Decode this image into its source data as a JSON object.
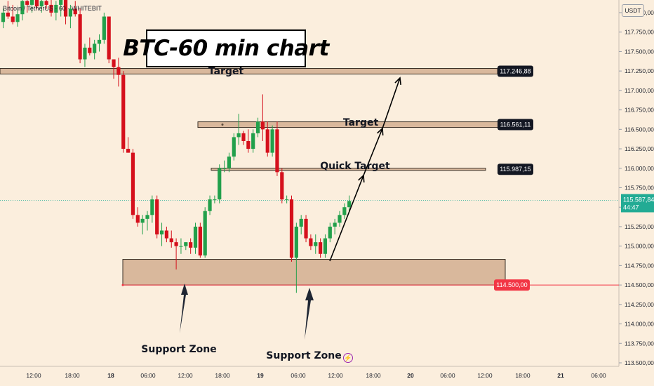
{
  "header": {
    "symbol": "Bitcoin / TetherUS · 60 · WHITEBIT",
    "currency": "USDT"
  },
  "title": "BTC-60 min chart",
  "colors": {
    "background": "#fbeedd",
    "up": "#22a04b",
    "down": "#d5101c",
    "zone_fill": "#d9b89c",
    "label_bg": "#131722",
    "support_tag": "#f23645",
    "current_tag": "#22ab94"
  },
  "chart_data": {
    "type": "candlestick",
    "title": "BTC-60 min chart",
    "y_range": [
      113400,
      118200
    ],
    "y_ticks": [
      113500,
      113750,
      114000,
      114250,
      114500,
      114750,
      115000,
      115250,
      115500,
      115750,
      116000,
      116250,
      116500,
      116750,
      117000,
      117250,
      117500,
      117750,
      118000
    ],
    "y_tick_labels": [
      "113.500,00",
      "113.750,00",
      "114.000,00",
      "114.250,00",
      "114.500,00",
      "114.750,00",
      "115.000,00",
      "115.250,00",
      "115.500,00",
      "115.750,00",
      "116.000,00",
      "116.250,00",
      "116.500,00",
      "116.750,00",
      "117.000,00",
      "117.250,00",
      "117.500,00",
      "117.750,00",
      "118.000,00"
    ],
    "x_labels": [
      "12:00",
      "18:00",
      "18",
      "06:00",
      "12:00",
      "18:00",
      "19",
      "06:00",
      "12:00",
      "18:00",
      "20",
      "06:00",
      "12:00",
      "18:00",
      "21",
      "06:00"
    ],
    "x_label_bold": [
      false,
      false,
      true,
      false,
      false,
      false,
      true,
      false,
      false,
      false,
      true,
      false,
      false,
      false,
      true,
      false
    ],
    "candles": [
      {
        "o": 117880,
        "h": 118050,
        "l": 117800,
        "c": 118000
      },
      {
        "o": 118000,
        "h": 118150,
        "l": 117920,
        "c": 117950
      },
      {
        "o": 117950,
        "h": 118100,
        "l": 117850,
        "c": 117880
      },
      {
        "o": 117880,
        "h": 118050,
        "l": 117820,
        "c": 117980
      },
      {
        "o": 117980,
        "h": 118200,
        "l": 117900,
        "c": 118150
      },
      {
        "o": 118150,
        "h": 118250,
        "l": 118000,
        "c": 118100
      },
      {
        "o": 118100,
        "h": 118220,
        "l": 118000,
        "c": 118180
      },
      {
        "o": 118180,
        "h": 118250,
        "l": 118050,
        "c": 118080
      },
      {
        "o": 118080,
        "h": 118200,
        "l": 118000,
        "c": 118150
      },
      {
        "o": 118150,
        "h": 118250,
        "l": 118050,
        "c": 118100
      },
      {
        "o": 118100,
        "h": 118200,
        "l": 117950,
        "c": 118000
      },
      {
        "o": 118000,
        "h": 118150,
        "l": 117900,
        "c": 118100
      },
      {
        "o": 118100,
        "h": 118250,
        "l": 117950,
        "c": 118180
      },
      {
        "o": 118180,
        "h": 118250,
        "l": 117850,
        "c": 117950
      },
      {
        "o": 117950,
        "h": 118100,
        "l": 117800,
        "c": 118050
      },
      {
        "o": 118050,
        "h": 118150,
        "l": 117950,
        "c": 117980
      },
      {
        "o": 117980,
        "h": 118050,
        "l": 117350,
        "c": 117400
      },
      {
        "o": 117400,
        "h": 117600,
        "l": 117300,
        "c": 117550
      },
      {
        "o": 117550,
        "h": 117680,
        "l": 117450,
        "c": 117480
      },
      {
        "o": 117480,
        "h": 117650,
        "l": 117400,
        "c": 117600
      },
      {
        "o": 117600,
        "h": 117720,
        "l": 117500,
        "c": 117650
      },
      {
        "o": 117650,
        "h": 118000,
        "l": 117600,
        "c": 117950
      },
      {
        "o": 117950,
        "h": 117950,
        "l": 117350,
        "c": 117400
      },
      {
        "o": 117400,
        "h": 117400,
        "l": 117150,
        "c": 117300
      },
      {
        "o": 117300,
        "h": 117420,
        "l": 117050,
        "c": 117200
      },
      {
        "o": 117200,
        "h": 117250,
        "l": 116200,
        "c": 116250
      },
      {
        "o": 116250,
        "h": 116400,
        "l": 116200,
        "c": 116200
      },
      {
        "o": 116200,
        "h": 116250,
        "l": 115350,
        "c": 115400
      },
      {
        "o": 115400,
        "h": 115500,
        "l": 115250,
        "c": 115300
      },
      {
        "o": 115300,
        "h": 115400,
        "l": 115150,
        "c": 115350
      },
      {
        "o": 115350,
        "h": 115450,
        "l": 115200,
        "c": 115400
      },
      {
        "o": 115400,
        "h": 115650,
        "l": 115300,
        "c": 115600
      },
      {
        "o": 115600,
        "h": 115650,
        "l": 115100,
        "c": 115150
      },
      {
        "o": 115150,
        "h": 115300,
        "l": 115000,
        "c": 115200
      },
      {
        "o": 115200,
        "h": 115250,
        "l": 115050,
        "c": 115100
      },
      {
        "o": 115100,
        "h": 115200,
        "l": 114980,
        "c": 115050
      },
      {
        "o": 115050,
        "h": 115100,
        "l": 114700,
        "c": 115000
      },
      {
        "o": 115000,
        "h": 115100,
        "l": 114900,
        "c": 115000
      },
      {
        "o": 115000,
        "h": 115050,
        "l": 114950,
        "c": 115050
      },
      {
        "o": 115050,
        "h": 115100,
        "l": 114900,
        "c": 114980
      },
      {
        "o": 114980,
        "h": 115300,
        "l": 114900,
        "c": 115250
      },
      {
        "o": 115250,
        "h": 115300,
        "l": 114850,
        "c": 114880
      },
      {
        "o": 114880,
        "h": 115500,
        "l": 114850,
        "c": 115450
      },
      {
        "o": 115450,
        "h": 115650,
        "l": 115400,
        "c": 115600
      },
      {
        "o": 115600,
        "h": 115650,
        "l": 115550,
        "c": 115600
      },
      {
        "o": 115600,
        "h": 116050,
        "l": 115550,
        "c": 116000
      },
      {
        "o": 116000,
        "h": 116100,
        "l": 115950,
        "c": 116000
      },
      {
        "o": 116000,
        "h": 116200,
        "l": 115950,
        "c": 116150
      },
      {
        "o": 116150,
        "h": 116450,
        "l": 116100,
        "c": 116400
      },
      {
        "o": 116400,
        "h": 116700,
        "l": 116300,
        "c": 116450
      },
      {
        "o": 116450,
        "h": 116480,
        "l": 116300,
        "c": 116350
      },
      {
        "o": 116350,
        "h": 116500,
        "l": 116200,
        "c": 116250
      },
      {
        "o": 116250,
        "h": 116500,
        "l": 116200,
        "c": 116450
      },
      {
        "o": 116450,
        "h": 116650,
        "l": 116400,
        "c": 116600
      },
      {
        "o": 116600,
        "h": 116950,
        "l": 116350,
        "c": 116500
      },
      {
        "o": 116500,
        "h": 116600,
        "l": 116150,
        "c": 116200
      },
      {
        "o": 116200,
        "h": 116550,
        "l": 116150,
        "c": 116500
      },
      {
        "o": 116500,
        "h": 116600,
        "l": 115900,
        "c": 115950
      },
      {
        "o": 115950,
        "h": 116000,
        "l": 115550,
        "c": 115600
      },
      {
        "o": 115600,
        "h": 115650,
        "l": 115550,
        "c": 115600
      },
      {
        "o": 115600,
        "h": 115650,
        "l": 114800,
        "c": 114850
      },
      {
        "o": 114850,
        "h": 115300,
        "l": 114400,
        "c": 115250
      },
      {
        "o": 115250,
        "h": 115400,
        "l": 115150,
        "c": 115350
      },
      {
        "o": 115350,
        "h": 115400,
        "l": 115050,
        "c": 115100
      },
      {
        "o": 115100,
        "h": 115150,
        "l": 114950,
        "c": 115000
      },
      {
        "o": 115000,
        "h": 115150,
        "l": 114900,
        "c": 115050
      },
      {
        "o": 115050,
        "h": 115100,
        "l": 114850,
        "c": 114900
      },
      {
        "o": 114900,
        "h": 115150,
        "l": 114850,
        "c": 115100
      },
      {
        "o": 115100,
        "h": 115300,
        "l": 115050,
        "c": 115250
      },
      {
        "o": 115250,
        "h": 115350,
        "l": 115150,
        "c": 115300
      },
      {
        "o": 115300,
        "h": 115450,
        "l": 115250,
        "c": 115400
      },
      {
        "o": 115400,
        "h": 115550,
        "l": 115350,
        "c": 115500
      },
      {
        "o": 115500,
        "h": 115650,
        "l": 115450,
        "c": 115580
      }
    ],
    "levels": [
      {
        "value": 117246.88,
        "label": "Target",
        "tag": "117.246,88"
      },
      {
        "value": 116561.11,
        "label": "Target",
        "tag": "116.561,11"
      },
      {
        "value": 115987.15,
        "label": "Quick Target",
        "tag": "115.987,15"
      }
    ],
    "support_zone": {
      "low": 114500,
      "high": 114830,
      "tag": "114.500,00",
      "label": "Support Zone"
    },
    "current_price": {
      "value": 115587.84,
      "tag": "115.587,84",
      "countdown": "44:47"
    }
  },
  "annotations": {
    "target_top": "Target",
    "target_mid": "Target",
    "quick_target": "Quick Target",
    "support_left": "Support Zone",
    "support_right": "Support Zone"
  }
}
